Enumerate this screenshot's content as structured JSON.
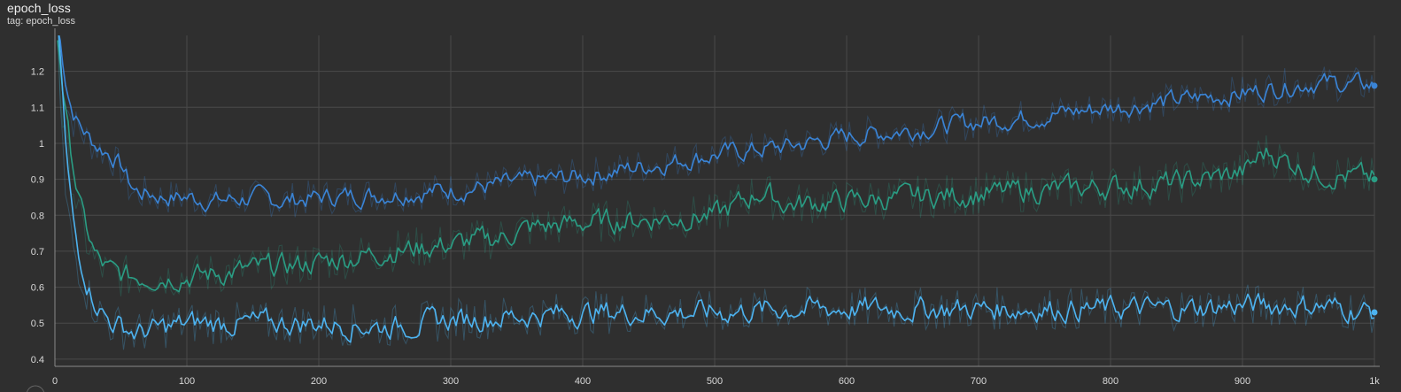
{
  "card": {
    "title": "epoch_loss",
    "tag": "tag: epoch_loss"
  },
  "colors": {
    "background": "#2f2f2f",
    "grid": "#4a4a4a",
    "axis": "#8a8a8a"
  },
  "chart_data": {
    "type": "line",
    "title": "epoch_loss",
    "subtitle": "tag: epoch_loss",
    "xlabel": "",
    "ylabel": "",
    "xlim": [
      0,
      1000
    ],
    "ylim": [
      0.38,
      1.3
    ],
    "grid": true,
    "x_ticks": [
      {
        "value": 0,
        "label": "0"
      },
      {
        "value": 100,
        "label": "100"
      },
      {
        "value": 200,
        "label": "200"
      },
      {
        "value": 300,
        "label": "300"
      },
      {
        "value": 400,
        "label": "400"
      },
      {
        "value": 500,
        "label": "500"
      },
      {
        "value": 600,
        "label": "600"
      },
      {
        "value": 700,
        "label": "700"
      },
      {
        "value": 800,
        "label": "800"
      },
      {
        "value": 900,
        "label": "900"
      },
      {
        "value": 1000,
        "label": "1k"
      }
    ],
    "y_ticks": [
      {
        "value": 0.4,
        "label": "0.4"
      },
      {
        "value": 0.5,
        "label": "0.5"
      },
      {
        "value": 0.6,
        "label": "0.6"
      },
      {
        "value": 0.7,
        "label": "0.7"
      },
      {
        "value": 0.8,
        "label": "0.8"
      },
      {
        "value": 0.9,
        "label": "0.9"
      },
      {
        "value": 1.0,
        "label": "1"
      },
      {
        "value": 1.1,
        "label": "1.1"
      },
      {
        "value": 1.2,
        "label": "1.2"
      }
    ],
    "series": [
      {
        "color": "#3a84d6",
        "x": [
          2,
          5,
          8,
          12,
          16,
          20,
          25,
          30,
          40,
          50,
          55,
          60,
          70,
          80,
          100,
          120,
          150,
          170,
          200,
          250,
          300,
          350,
          400,
          450,
          500,
          550,
          600,
          650,
          700,
          750,
          800,
          850,
          900,
          950,
          1000
        ],
        "y": [
          1.32,
          1.2,
          1.12,
          1.07,
          1.05,
          1.03,
          1.01,
          0.99,
          0.97,
          0.93,
          0.88,
          0.86,
          0.86,
          0.85,
          0.85,
          0.84,
          0.85,
          0.84,
          0.85,
          0.86,
          0.87,
          0.89,
          0.91,
          0.94,
          0.97,
          0.99,
          1.02,
          1.04,
          1.06,
          1.08,
          1.1,
          1.12,
          1.14,
          1.17,
          1.16
        ]
      },
      {
        "color": "#2a9d84",
        "x": [
          2,
          5,
          8,
          12,
          16,
          20,
          25,
          30,
          40,
          50,
          70,
          100,
          150,
          200,
          250,
          300,
          340,
          350,
          400,
          450,
          500,
          535,
          550,
          600,
          650,
          700,
          750,
          800,
          850,
          900,
          915,
          950,
          1000
        ],
        "y": [
          1.3,
          1.1,
          1.0,
          0.92,
          0.84,
          0.77,
          0.72,
          0.67,
          0.64,
          0.63,
          0.63,
          0.63,
          0.65,
          0.67,
          0.7,
          0.72,
          0.74,
          0.76,
          0.78,
          0.79,
          0.8,
          0.87,
          0.83,
          0.84,
          0.85,
          0.86,
          0.87,
          0.88,
          0.89,
          0.92,
          0.98,
          0.92,
          0.9
        ]
      },
      {
        "color": "#4db3f0",
        "x": [
          2,
          5,
          8,
          12,
          16,
          20,
          25,
          30,
          40,
          50,
          60,
          70,
          100,
          150,
          200,
          250,
          300,
          350,
          400,
          450,
          500,
          550,
          600,
          650,
          700,
          750,
          800,
          850,
          900,
          950,
          1000
        ],
        "y": [
          1.3,
          1.05,
          0.85,
          0.75,
          0.68,
          0.64,
          0.58,
          0.55,
          0.5,
          0.49,
          0.47,
          0.48,
          0.5,
          0.5,
          0.5,
          0.49,
          0.51,
          0.52,
          0.53,
          0.53,
          0.53,
          0.54,
          0.54,
          0.54,
          0.54,
          0.54,
          0.54,
          0.54,
          0.55,
          0.55,
          0.53
        ]
      }
    ]
  }
}
